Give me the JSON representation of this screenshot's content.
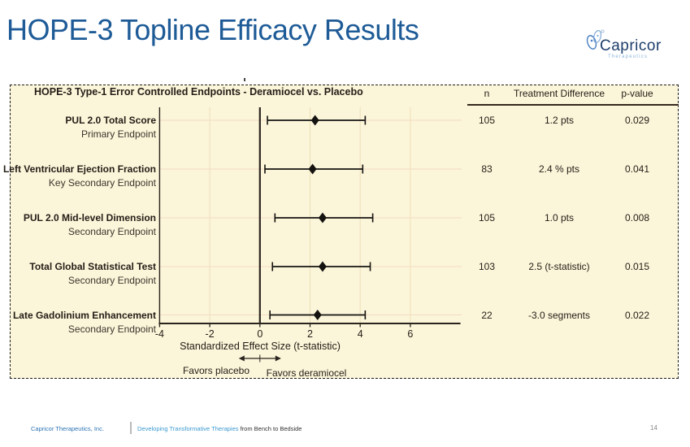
{
  "slide": {
    "title": "HOPE-3 Topline Efficacy Results",
    "page_number": "14"
  },
  "logo": {
    "name": "Capricor",
    "subtext": "Therapeutics"
  },
  "footer": {
    "company": "Capricor Therapeutics, Inc.",
    "tagline_blue": "Developing Transformative Therapies",
    "tagline_rest": " from Bench to Bedside"
  },
  "chart_data": {
    "type": "forest",
    "title": "HOPE-3 Type-1 Error Controlled Endpoints - Deramiocel vs. Placebo",
    "xlabel": "Standardized Effect Size (t-statistic)",
    "x_ticks": [
      -4,
      -2,
      0,
      2,
      4,
      6
    ],
    "xlim": [
      -4,
      8
    ],
    "zero_line": 0,
    "grid": true,
    "favors_left": "Favors placebo",
    "favors_right": "Favors deramiocel",
    "columns": [
      "n",
      "Treatment Difference",
      "p-value"
    ],
    "rows": [
      {
        "label": "PUL 2.0 Total Score",
        "sublabel": "Primary Endpoint",
        "estimate": 2.2,
        "ci_low": 0.3,
        "ci_high": 4.2,
        "n": "105",
        "treatment_difference": "1.2 pts",
        "p_value": "0.029"
      },
      {
        "label": "Left Ventricular Ejection Fraction",
        "sublabel": "Key Secondary Endpoint",
        "estimate": 2.1,
        "ci_low": 0.2,
        "ci_high": 4.1,
        "n": "83",
        "treatment_difference": "2.4 % pts",
        "p_value": "0.041"
      },
      {
        "label": "PUL 2.0 Mid-level Dimension",
        "sublabel": "Secondary Endpoint",
        "estimate": 2.5,
        "ci_low": 0.6,
        "ci_high": 4.5,
        "n": "105",
        "treatment_difference": "1.0 pts",
        "p_value": "0.008"
      },
      {
        "label": "Total Global Statistical Test",
        "sublabel": "Secondary Endpoint",
        "estimate": 2.5,
        "ci_low": 0.5,
        "ci_high": 4.4,
        "n": "103",
        "treatment_difference": "2.5 (t-statistic)",
        "p_value": "0.015"
      },
      {
        "label": "Late Gadolinium Enhancement",
        "sublabel": "Secondary Endpoint",
        "estimate": 2.3,
        "ci_low": 0.4,
        "ci_high": 4.2,
        "n": "22",
        "treatment_difference": "-3.0 segments",
        "p_value": "0.022"
      }
    ],
    "colors": {
      "plot_bg": "#fbf5d9",
      "grid_light": "#eee0ba",
      "grid_row": "#f3dcc6",
      "axis_dark": "#2a241f",
      "marker": "#151310",
      "title_blue": "#1e5b97"
    }
  }
}
